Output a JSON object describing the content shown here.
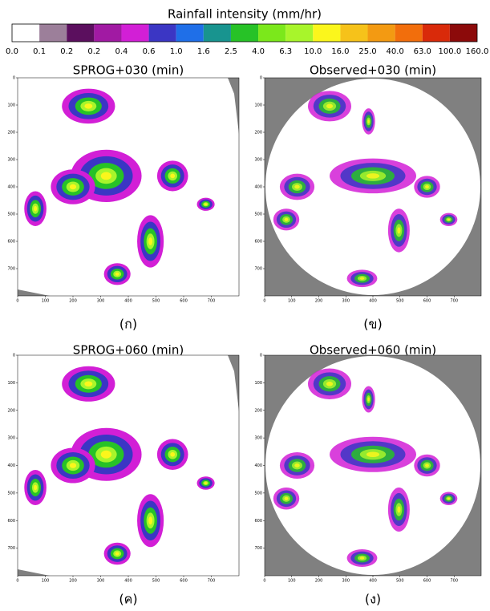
{
  "colorbar": {
    "title": "Rainfall intensity (mm/hr)",
    "colors": [
      "#ffffff",
      "#9c7f9a",
      "#5b0f5e",
      "#a11aa3",
      "#d21fd6",
      "#3b36c4",
      "#1f6fe8",
      "#18948f",
      "#27c227",
      "#7be81b",
      "#a8f52b",
      "#fbf61c",
      "#f6c21a",
      "#f39a12",
      "#f26e0c",
      "#d92a0a",
      "#8c0a0a"
    ],
    "tick_labels": [
      "0.0",
      "0.1",
      "0.2",
      "0.2",
      "0.4",
      "0.6",
      "1.0",
      "1.6",
      "2.5",
      "4.0",
      "6.3",
      "10.0",
      "16.0",
      "25.0",
      "40.0",
      "63.0",
      "100.0",
      "160.0"
    ]
  },
  "panels": [
    {
      "title": "SPROG+030 (min)",
      "caption": "(ก)",
      "kind": "forecast",
      "xlim": [
        0,
        800
      ],
      "ylim": [
        800,
        0
      ],
      "xticks": [
        0,
        100,
        200,
        300,
        400,
        500,
        600,
        700
      ],
      "yticks": [
        0,
        100,
        200,
        300,
        400,
        500,
        600,
        700
      ]
    },
    {
      "title": "Observed+030 (min)",
      "caption": "(ข)",
      "kind": "observed",
      "xlim": [
        0,
        800
      ],
      "ylim": [
        800,
        0
      ],
      "xticks": [
        0,
        100,
        200,
        300,
        400,
        500,
        600,
        700
      ],
      "yticks": [
        0,
        100,
        200,
        300,
        400,
        500,
        600,
        700
      ]
    },
    {
      "title": "SPROG+060 (min)",
      "caption": "(ค)",
      "kind": "forecast",
      "xlim": [
        0,
        800
      ],
      "ylim": [
        800,
        0
      ],
      "xticks": [
        0,
        100,
        200,
        300,
        400,
        500,
        600,
        700
      ],
      "yticks": [
        0,
        100,
        200,
        300,
        400,
        500,
        600,
        700
      ]
    },
    {
      "title": "Observed+060 (min)",
      "caption": "(ง)",
      "kind": "observed",
      "xlim": [
        0,
        800
      ],
      "ylim": [
        800,
        0
      ],
      "xticks": [
        0,
        100,
        200,
        300,
        400,
        500,
        600,
        700
      ],
      "yticks": [
        0,
        100,
        200,
        300,
        400,
        500,
        600,
        700
      ]
    }
  ]
}
